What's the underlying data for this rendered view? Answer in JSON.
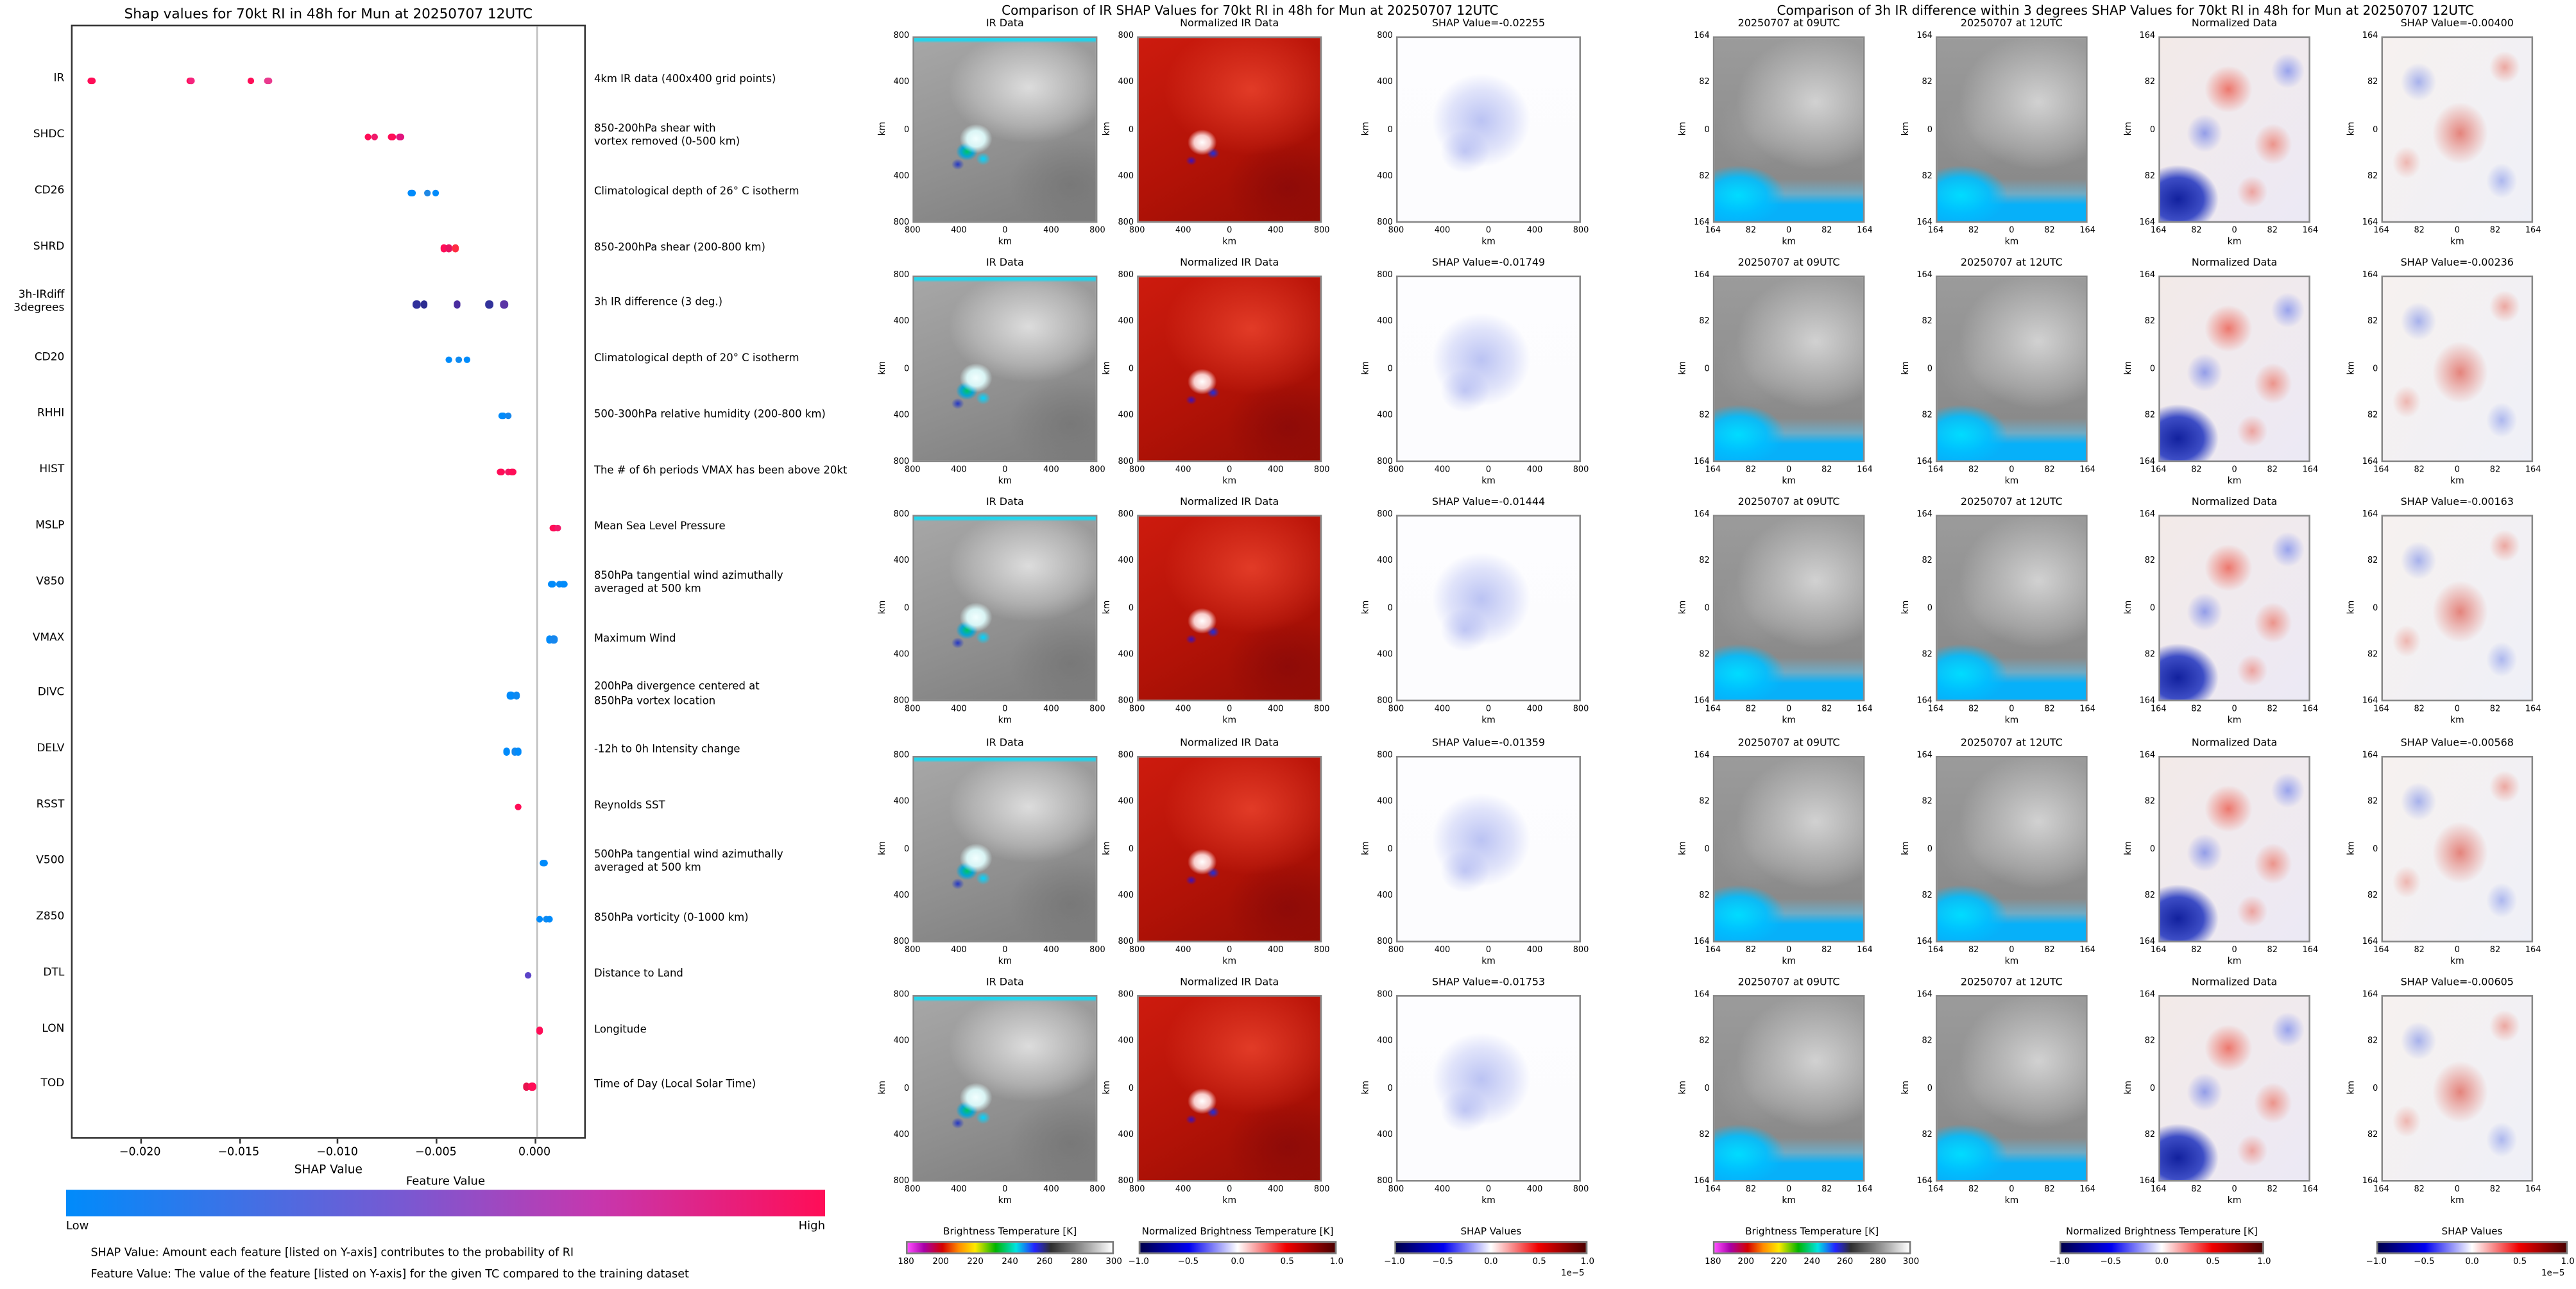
{
  "left_panel": {
    "title": "Shap values for 70kt RI in 48h for Mun at 20250707 12UTC",
    "xlabel": "SHAP Value",
    "x_ticks": [
      {
        "v": -0.02,
        "label": "−0.020"
      },
      {
        "v": -0.015,
        "label": "−0.015"
      },
      {
        "v": -0.01,
        "label": "−0.010"
      },
      {
        "v": -0.005,
        "label": "−0.005"
      },
      {
        "v": 0.0,
        "label": "0.000"
      }
    ],
    "colorbar": {
      "title": "Feature Value",
      "low": "Low",
      "high": "High",
      "gradient": [
        "#008bfb",
        "#7a58d1",
        "#c637ae",
        "#ff0d57"
      ]
    },
    "footnote1": "SHAP Value: Amount each feature [listed on Y-axis] contributes to the probability of RI",
    "footnote2": "Feature Value: The value of the feature [listed on Y-axis] for the given TC compared to the training dataset"
  },
  "chart_data": {
    "type": "scatter",
    "title": "Shap values for 70kt RI in 48h for Mun at 20250707 12UTC",
    "xlabel": "SHAP Value",
    "xlim": [
      -0.0235,
      0.0026
    ],
    "color_low": "#008bfb",
    "color_high": "#ff0d57",
    "ir_shap_values": [
      -0.02255,
      -0.01749,
      -0.01444,
      -0.01359,
      -0.01753
    ],
    "ir_diff_shap_values": [
      -0.004,
      -0.00236,
      -0.00163,
      -0.00568,
      -0.00605
    ],
    "features": [
      {
        "label": "IR",
        "description": "4km IR data (400x400 grid points)",
        "points": [
          {
            "x": -0.02255,
            "color": "#ff0d57"
          },
          {
            "x": -0.01753,
            "color": "#ff0d57"
          },
          {
            "x": -0.01749,
            "color": "#f5237d"
          },
          {
            "x": -0.01444,
            "color": "#ff0d57"
          },
          {
            "x": -0.01359,
            "color": "#e93a8e"
          }
        ]
      },
      {
        "label": "SHDC",
        "description": "850-200hPa shear with\nvortex removed (0-500 km)",
        "points": [
          {
            "x": -0.0085,
            "color": "#ff0d57"
          },
          {
            "x": -0.0082,
            "color": "#f01a6a"
          },
          {
            "x": -0.0073,
            "color": "#ff0d57"
          },
          {
            "x": -0.0069,
            "color": "#e1147d"
          }
        ]
      },
      {
        "label": "CD26",
        "description": "Climatological depth of 26° C isotherm",
        "points": [
          {
            "x": -0.0063,
            "color": "#008bfb"
          },
          {
            "x": -0.0055,
            "color": "#1e88e5"
          },
          {
            "x": -0.0051,
            "color": "#008bfb"
          }
        ]
      },
      {
        "label": "SHRD",
        "description": "850-200hPa shear (200-800 km)",
        "points": [
          {
            "x": -0.0047,
            "color": "#ff0d57"
          },
          {
            "x": -0.0044,
            "color": "#e8125f"
          },
          {
            "x": -0.0041,
            "color": "#ff2c43"
          }
        ]
      },
      {
        "label": "3h-IRdiff\n3degrees",
        "description": "3h IR difference (3 deg.)",
        "points": [
          {
            "x": -0.00605,
            "color": "#31319b"
          },
          {
            "x": -0.00568,
            "color": "#2d2d91"
          },
          {
            "x": -0.004,
            "color": "#4a2da0"
          },
          {
            "x": -0.00236,
            "color": "#33339b"
          },
          {
            "x": -0.00163,
            "color": "#5c35a5"
          }
        ]
      },
      {
        "label": "CD20",
        "description": "Climatological depth of 20° C isotherm",
        "points": [
          {
            "x": -0.0044,
            "color": "#008bfb"
          },
          {
            "x": -0.0039,
            "color": "#0f8af0"
          },
          {
            "x": -0.0035,
            "color": "#008bfb"
          }
        ]
      },
      {
        "label": "RHHI",
        "description": "500-300hPa relative humidity (200-800 km)",
        "points": [
          {
            "x": -0.0017,
            "color": "#008bfb"
          },
          {
            "x": -0.0014,
            "color": "#1486ec"
          }
        ]
      },
      {
        "label": "HIST",
        "description": "The # of 6h periods VMAX has been above 20kt",
        "points": [
          {
            "x": -0.0018,
            "color": "#ff0d57"
          },
          {
            "x": -0.0014,
            "color": "#f31563"
          },
          {
            "x": -0.0012,
            "color": "#ff0d57"
          }
        ]
      },
      {
        "label": "MSLP",
        "description": "Mean Sea Level Pressure",
        "points": [
          {
            "x": 0.0009,
            "color": "#ff0d57"
          },
          {
            "x": 0.0011,
            "color": "#f01a6a"
          }
        ]
      },
      {
        "label": "V850",
        "description": "850hPa tangential wind azimuthally\naveraged at 500 km",
        "points": [
          {
            "x": 0.0008,
            "color": "#008bfb"
          },
          {
            "x": 0.0012,
            "color": "#0b89f3"
          },
          {
            "x": 0.0014,
            "color": "#008bfb"
          }
        ]
      },
      {
        "label": "VMAX",
        "description": "Maximum Wind",
        "points": [
          {
            "x": 0.0007,
            "color": "#008bfb"
          },
          {
            "x": 0.0009,
            "color": "#1687ee"
          }
        ]
      },
      {
        "label": "DIVC",
        "description": "200hPa divergence centered at\n850hPa vortex location",
        "points": [
          {
            "x": -0.0013,
            "color": "#008bfb"
          },
          {
            "x": -0.001,
            "color": "#0d89f1"
          }
        ]
      },
      {
        "label": "DELV",
        "description": "-12h to 0h Intensity change",
        "points": [
          {
            "x": -0.0015,
            "color": "#008bfb"
          },
          {
            "x": -0.0011,
            "color": "#1788ec"
          },
          {
            "x": -0.0009,
            "color": "#008bfb"
          }
        ]
      },
      {
        "label": "RSST",
        "description": "Reynolds SST",
        "points": [
          {
            "x": -0.0009,
            "color": "#ff0d57"
          }
        ]
      },
      {
        "label": "V500",
        "description": "500hPa tangential wind azimuthally\naveraged at 500 km",
        "points": [
          {
            "x": 0.0004,
            "color": "#008bfb"
          }
        ]
      },
      {
        "label": "Z850",
        "description": "850hPa vorticity (0-1000 km)",
        "points": [
          {
            "x": 0.0002,
            "color": "#008bfb"
          },
          {
            "x": 0.0005,
            "color": "#0f8af0"
          },
          {
            "x": 0.0007,
            "color": "#008bfb"
          }
        ]
      },
      {
        "label": "DTL",
        "description": "Distance to Land",
        "points": [
          {
            "x": -0.0004,
            "color": "#5b43c8"
          }
        ]
      },
      {
        "label": "LON",
        "description": "Longitude",
        "points": [
          {
            "x": 0.0002,
            "color": "#ff0d57"
          }
        ]
      },
      {
        "label": "TOD",
        "description": "Time of Day (Local Solar Time)",
        "points": [
          {
            "x": -0.0005,
            "color": "#e8144e"
          },
          {
            "x": -0.0002,
            "color": "#ff0d57"
          }
        ]
      }
    ]
  },
  "middle_panel": {
    "title": "Comparison of IR SHAP Values for 70kt RI in 48h for Mun at 20250707 12UTC",
    "axis_label": "km",
    "tick_labels": [
      "800",
      "400",
      "0",
      "400",
      "800"
    ],
    "col_titles": {
      "ir": "IR Data",
      "norm": "Normalized IR Data"
    },
    "rows": [
      {
        "shap_label": "SHAP Value=-0.02255"
      },
      {
        "shap_label": "SHAP Value=-0.01749"
      },
      {
        "shap_label": "SHAP Value=-0.01444"
      },
      {
        "shap_label": "SHAP Value=-0.01359"
      },
      {
        "shap_label": "SHAP Value=-0.01753"
      }
    ],
    "colorbars": [
      {
        "title": "Brightness Temperature [K]",
        "type": "ir",
        "ticks": [
          "180",
          "200",
          "220",
          "240",
          "260",
          "280",
          "300"
        ]
      },
      {
        "title": "Normalized Brightness Temperature [K]",
        "type": "seismic",
        "ticks": [
          "−1.0",
          "−0.5",
          "0.0",
          "0.5",
          "1.0"
        ]
      },
      {
        "title": "SHAP Values",
        "type": "seismic",
        "ticks": [
          "−1.0",
          "−0.5",
          "0.0",
          "0.5",
          "1.0"
        ],
        "offset": "1e−5"
      }
    ]
  },
  "right_panel": {
    "title": "Comparison of 3h IR difference within 3 degrees SHAP Values for 70kt RI in 48h for Mun at 20250707 12UTC",
    "axis_label": "km",
    "tick_labels": [
      "164",
      "82",
      "0",
      "82",
      "164"
    ],
    "col_titles": {
      "t09": "20250707 at 09UTC",
      "t12": "20250707 at 12UTC",
      "norm": "Normalized Data"
    },
    "rows": [
      {
        "shap_label": "SHAP Value=-0.00400"
      },
      {
        "shap_label": "SHAP Value=-0.00236"
      },
      {
        "shap_label": "SHAP Value=-0.00163"
      },
      {
        "shap_label": "SHAP Value=-0.00568"
      },
      {
        "shap_label": "SHAP Value=-0.00605"
      }
    ],
    "colorbars": [
      {
        "title": "Brightness Temperature [K]",
        "type": "ir",
        "ticks": [
          "180",
          "200",
          "220",
          "240",
          "260",
          "280",
          "300"
        ]
      },
      {
        "title": "Normalized Brightness Temperature [K]",
        "type": "seismic",
        "ticks": [
          "−1.0",
          "−0.5",
          "0.0",
          "0.5",
          "1.0"
        ]
      },
      {
        "title": "SHAP Values",
        "type": "seismic",
        "ticks": [
          "−1.0",
          "−0.5",
          "0.0",
          "0.5",
          "1.0"
        ],
        "offset": "1e−5"
      }
    ]
  }
}
